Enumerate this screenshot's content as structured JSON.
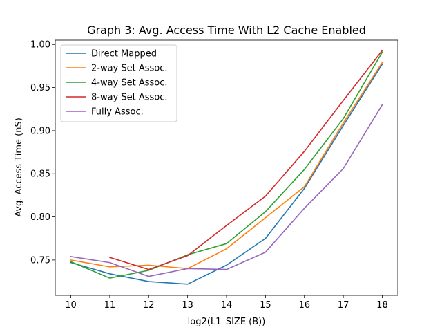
{
  "chart_data": {
    "type": "line",
    "title": "Graph 3: Avg. Access Time With L2 Cache Enabled",
    "xlabel": "log2(L1_SIZE (B))",
    "ylabel": "Avg. Access Time (nS)",
    "x_ticks": [
      "10",
      "11",
      "12",
      "13",
      "14",
      "15",
      "16",
      "17",
      "18"
    ],
    "y_ticks": [
      "0.75",
      "0.80",
      "0.85",
      "0.90",
      "0.95",
      "1.00"
    ],
    "xlim": [
      9.6,
      18.4
    ],
    "ylim": [
      0.709,
      1.005
    ],
    "grid": false,
    "legend_position": "top-left",
    "series": [
      {
        "name": "Direct Mapped",
        "color": "#1f77b4",
        "x": [
          10,
          11,
          12,
          13,
          14,
          15,
          16,
          17,
          18
        ],
        "y": [
          0.747,
          0.734,
          0.725,
          0.722,
          0.744,
          0.775,
          0.833,
          0.906,
          0.977
        ]
      },
      {
        "name": "2-way Set Assoc.",
        "color": "#ff7f0e",
        "x": [
          10,
          11,
          12,
          13,
          14,
          15,
          16,
          17,
          18
        ],
        "y": [
          0.75,
          0.742,
          0.744,
          0.74,
          0.763,
          0.799,
          0.835,
          0.909,
          0.979
        ]
      },
      {
        "name": "4-way Set Assoc.",
        "color": "#2ca02c",
        "x": [
          10,
          11,
          12,
          13,
          14,
          15,
          16,
          17,
          18
        ],
        "y": [
          0.748,
          0.729,
          0.738,
          0.756,
          0.769,
          0.806,
          0.855,
          0.914,
          0.991
        ]
      },
      {
        "name": "8-way Set Assoc.",
        "color": "#d62728",
        "x": [
          11,
          12,
          13,
          14,
          15,
          16,
          17,
          18
        ],
        "y": [
          0.753,
          0.739,
          0.755,
          0.79,
          0.824,
          0.876,
          0.935,
          0.993
        ]
      },
      {
        "name": "Fully Assoc.",
        "color": "#9467bd",
        "x": [
          10,
          11,
          12,
          13,
          14,
          15,
          16,
          17,
          18
        ],
        "y": [
          0.754,
          0.747,
          0.731,
          0.74,
          0.739,
          0.759,
          0.81,
          0.856,
          0.93
        ]
      }
    ]
  }
}
